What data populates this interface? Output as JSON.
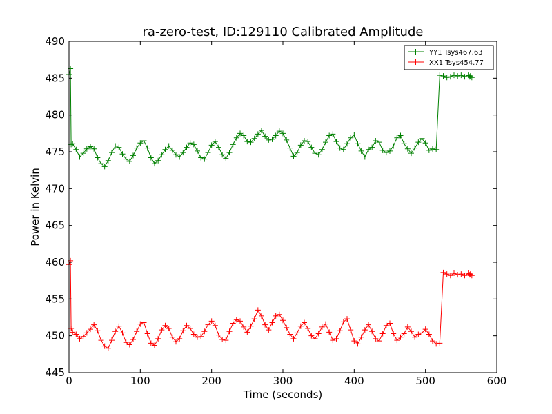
{
  "chart_data": {
    "type": "line",
    "title": "ra-zero-test, ID:129110 Calibrated Amplitude",
    "xlabel": "Time (seconds)",
    "ylabel": "Power in Kelvin",
    "xlim": [
      0,
      600
    ],
    "ylim": [
      445,
      490
    ],
    "xticks": [
      0,
      100,
      200,
      300,
      400,
      500,
      600
    ],
    "yticks": [
      445,
      450,
      455,
      460,
      465,
      470,
      475,
      480,
      485,
      490
    ],
    "grid": false,
    "legend_position": "top-right",
    "marker": "+",
    "series": [
      {
        "name": "YY1 Tsys467.63",
        "color": "#008000",
        "x": [
          0,
          2,
          3,
          5,
          10,
          15,
          20,
          25,
          30,
          35,
          40,
          45,
          50,
          55,
          60,
          65,
          70,
          75,
          80,
          85,
          90,
          95,
          100,
          105,
          110,
          115,
          120,
          125,
          130,
          135,
          140,
          145,
          150,
          155,
          160,
          165,
          170,
          175,
          180,
          185,
          190,
          195,
          200,
          205,
          210,
          215,
          220,
          225,
          230,
          235,
          240,
          245,
          250,
          255,
          260,
          265,
          270,
          275,
          280,
          285,
          290,
          295,
          300,
          305,
          310,
          315,
          320,
          325,
          330,
          335,
          340,
          345,
          350,
          355,
          360,
          365,
          370,
          375,
          380,
          385,
          390,
          395,
          400,
          405,
          410,
          415,
          420,
          425,
          430,
          435,
          440,
          445,
          450,
          455,
          460,
          465,
          470,
          475,
          480,
          485,
          490,
          495,
          500,
          505,
          510,
          515,
          520,
          525,
          530,
          535,
          540,
          545,
          550,
          555,
          560,
          562,
          563,
          565
        ],
        "y": [
          485.5,
          486.3,
          476.0,
          476.1,
          475.3,
          474.3,
          474.8,
          475.4,
          475.7,
          475.4,
          474.2,
          473.4,
          473.0,
          473.8,
          474.9,
          475.8,
          475.6,
          474.7,
          474.0,
          473.7,
          474.5,
          475.5,
          476.2,
          476.5,
          475.5,
          474.2,
          473.4,
          473.8,
          474.6,
          475.3,
          475.8,
          475.2,
          474.6,
          474.3,
          474.9,
          475.6,
          476.2,
          476.0,
          475.1,
          474.2,
          474.0,
          474.9,
          475.9,
          476.4,
          475.6,
          474.6,
          474.1,
          474.9,
          476.0,
          476.9,
          477.5,
          477.2,
          476.4,
          476.3,
          476.8,
          477.4,
          477.9,
          477.1,
          476.6,
          476.7,
          477.2,
          477.8,
          477.5,
          476.6,
          475.5,
          474.4,
          474.9,
          475.9,
          476.5,
          476.4,
          475.6,
          474.8,
          474.6,
          475.3,
          476.3,
          477.2,
          477.4,
          476.4,
          475.5,
          475.3,
          476.1,
          476.9,
          477.3,
          476.1,
          475.1,
          474.3,
          475.3,
          475.6,
          476.5,
          476.3,
          475.2,
          474.9,
          475.1,
          475.8,
          476.9,
          477.2,
          476.1,
          475.4,
          474.8,
          475.5,
          476.3,
          476.8,
          476.2,
          475.2,
          475.4,
          475.3,
          485.4,
          485.3,
          485.1,
          485.2,
          485.4,
          485.3,
          485.4,
          485.2,
          485.4,
          485.2,
          485.3,
          485.1
        ]
      },
      {
        "name": "XX1 Tsys454.77",
        "color": "#ff0000",
        "x": [
          0,
          2,
          3,
          5,
          10,
          15,
          20,
          25,
          30,
          35,
          40,
          45,
          50,
          55,
          60,
          65,
          70,
          75,
          80,
          85,
          90,
          95,
          100,
          105,
          110,
          115,
          120,
          125,
          130,
          135,
          140,
          145,
          150,
          155,
          160,
          165,
          170,
          175,
          180,
          185,
          190,
          195,
          200,
          205,
          210,
          215,
          220,
          225,
          230,
          235,
          240,
          245,
          250,
          255,
          260,
          265,
          270,
          275,
          280,
          285,
          290,
          295,
          300,
          305,
          310,
          315,
          320,
          325,
          330,
          335,
          340,
          345,
          350,
          355,
          360,
          365,
          370,
          375,
          380,
          385,
          390,
          395,
          400,
          405,
          410,
          415,
          420,
          425,
          430,
          435,
          440,
          445,
          450,
          455,
          460,
          465,
          470,
          475,
          480,
          485,
          490,
          495,
          500,
          505,
          510,
          515,
          520,
          525,
          530,
          535,
          540,
          545,
          550,
          555,
          560,
          562,
          563,
          565
        ],
        "y": [
          459.7,
          460.2,
          451.0,
          450.5,
          450.2,
          449.6,
          449.9,
          450.4,
          450.9,
          451.5,
          450.7,
          449.4,
          448.6,
          448.3,
          449.4,
          450.6,
          451.3,
          450.4,
          449.1,
          448.8,
          449.5,
          450.6,
          451.6,
          451.8,
          450.3,
          449.0,
          448.7,
          449.6,
          450.8,
          451.4,
          451.0,
          449.8,
          449.2,
          449.6,
          450.7,
          451.4,
          451.0,
          450.2,
          449.8,
          449.9,
          450.6,
          451.5,
          452.0,
          451.4,
          450.1,
          449.5,
          449.4,
          450.6,
          451.7,
          452.2,
          452.0,
          451.2,
          450.5,
          451.3,
          452.3,
          453.5,
          452.7,
          451.5,
          450.8,
          451.8,
          452.7,
          452.9,
          452.1,
          451.1,
          450.2,
          449.6,
          450.4,
          451.3,
          451.8,
          451.0,
          450.0,
          449.6,
          450.3,
          451.2,
          451.6,
          450.5,
          449.4,
          449.6,
          450.7,
          451.9,
          452.3,
          450.8,
          449.3,
          448.9,
          449.8,
          450.8,
          451.5,
          450.6,
          449.6,
          449.3,
          450.3,
          451.4,
          451.7,
          450.3,
          449.4,
          449.8,
          450.3,
          451.2,
          450.6,
          449.8,
          450.2,
          450.4,
          450.9,
          450.2,
          449.3,
          448.9,
          449.0,
          458.6,
          458.4,
          458.2,
          458.5,
          458.3,
          458.4,
          458.2,
          458.5,
          458.3,
          458.4,
          458.2
        ]
      }
    ]
  }
}
